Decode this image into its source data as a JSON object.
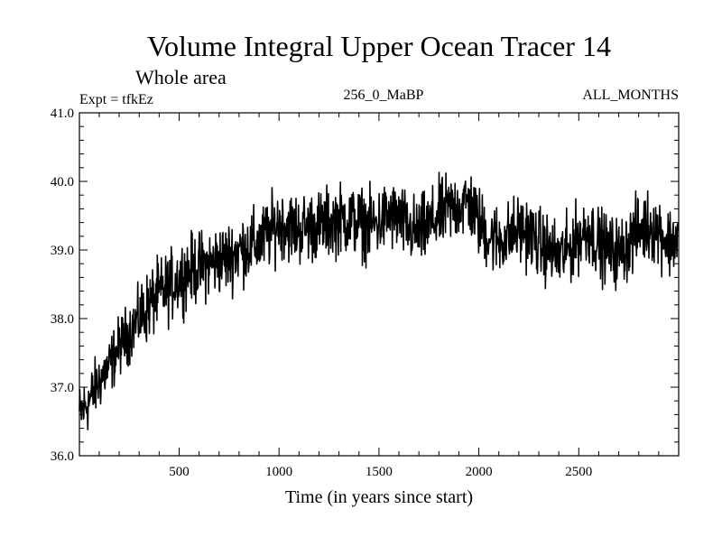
{
  "chart_data": {
    "type": "line",
    "title": "Volume Integral Upper Ocean Tracer 14",
    "subtitle": "Whole area",
    "experiment": "Expt = tfkEz",
    "period": "256_0_MaBP",
    "months": "ALL_MONTHS",
    "xlabel": "Time (in years since start)",
    "ylabel": "",
    "xlim": [
      1,
      3000
    ],
    "ylim": [
      36.0,
      41.0
    ],
    "xticks": [
      500,
      1000,
      1500,
      2000,
      2500
    ],
    "xtick_labels": [
      "500",
      "1000",
      "1500",
      "2000",
      "2500"
    ],
    "yticks": [
      36.0,
      37.0,
      38.0,
      39.0,
      40.0,
      41.0
    ],
    "ytick_labels": [
      "36.0",
      "37.0",
      "38.0",
      "39.0",
      "40.0",
      "41.0"
    ],
    "grid": false,
    "line_color": "#000000",
    "series": [
      {
        "x": [
          1,
          50,
          100,
          150,
          200,
          250,
          300,
          350,
          400,
          450,
          500,
          550,
          600,
          650,
          700,
          750,
          800,
          850,
          900,
          950,
          1000,
          1050,
          1100,
          1150,
          1200,
          1250,
          1300,
          1350,
          1400,
          1450,
          1500,
          1550,
          1600,
          1650,
          1700,
          1750,
          1800,
          1850,
          1900,
          1950,
          2000,
          2050,
          2100,
          2150,
          2200,
          2250,
          2300,
          2350,
          2400,
          2450,
          2500,
          2550,
          2600,
          2650,
          2700,
          2750,
          2800,
          2850,
          2900,
          2950,
          3000
        ],
        "values": [
          36.6,
          36.8,
          37.1,
          37.3,
          37.6,
          37.8,
          38.0,
          38.2,
          38.35,
          38.45,
          38.6,
          38.7,
          38.75,
          38.8,
          38.85,
          38.9,
          39.0,
          39.05,
          39.1,
          39.25,
          39.4,
          39.35,
          39.3,
          39.35,
          39.35,
          39.4,
          39.45,
          39.45,
          39.4,
          39.35,
          39.4,
          39.5,
          39.45,
          39.3,
          39.25,
          39.35,
          39.5,
          39.6,
          39.65,
          39.7,
          39.4,
          39.2,
          39.15,
          39.2,
          39.3,
          39.25,
          39.1,
          39.0,
          38.9,
          39.0,
          39.2,
          39.3,
          39.1,
          39.0,
          38.95,
          39.1,
          39.3,
          39.35,
          39.3,
          39.1,
          39.2
        ]
      }
    ]
  }
}
